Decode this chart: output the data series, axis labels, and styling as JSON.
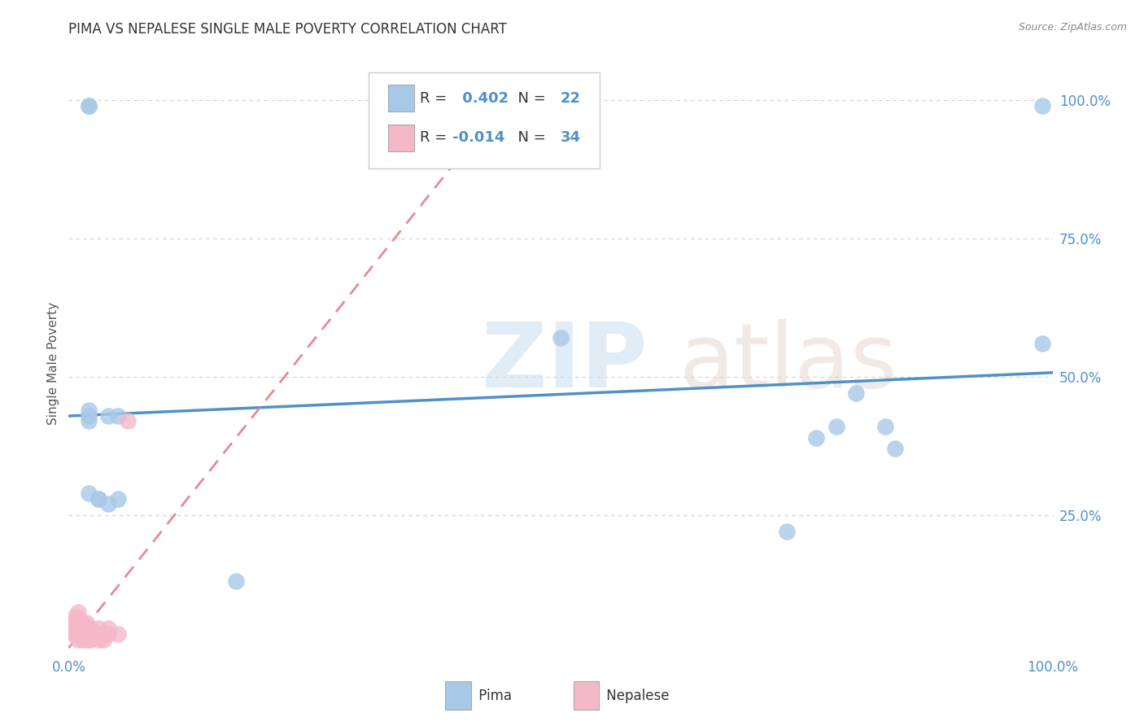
{
  "title": "PIMA VS NEPALESE SINGLE MALE POVERTY CORRELATION CHART",
  "source": "Source: ZipAtlas.com",
  "ylabel_label": "Single Male Poverty",
  "pima_R": 0.402,
  "pima_N": 22,
  "nepalese_R": -0.014,
  "nepalese_N": 34,
  "pima_color": "#a8c8e8",
  "nepalese_color": "#f4b8c8",
  "pima_line_color": "#5090c8",
  "nepalese_line_color": "#e88898",
  "pima_scatter_x": [
    0.02,
    0.02,
    0.02,
    0.02,
    0.03,
    0.03,
    0.04,
    0.04,
    0.05,
    0.05,
    0.5,
    0.73,
    0.76,
    0.78,
    0.8,
    0.83,
    0.84,
    0.99,
    0.02,
    0.02,
    0.17,
    0.99
  ],
  "pima_scatter_y": [
    0.44,
    0.43,
    0.42,
    0.29,
    0.28,
    0.28,
    0.43,
    0.27,
    0.43,
    0.28,
    0.57,
    0.22,
    0.39,
    0.41,
    0.47,
    0.41,
    0.37,
    0.56,
    0.99,
    0.99,
    0.13,
    0.99
  ],
  "nepalese_scatter_x": [
    0.005,
    0.005,
    0.005,
    0.005,
    0.007,
    0.007,
    0.008,
    0.01,
    0.01,
    0.01,
    0.01,
    0.01,
    0.01,
    0.012,
    0.013,
    0.015,
    0.015,
    0.018,
    0.018,
    0.018,
    0.02,
    0.02,
    0.02,
    0.022,
    0.022,
    0.025,
    0.03,
    0.03,
    0.03,
    0.035,
    0.04,
    0.04,
    0.05,
    0.06
  ],
  "nepalese_scatter_y": [
    0.035,
    0.045,
    0.055,
    0.065,
    0.035,
    0.055,
    0.055,
    0.025,
    0.035,
    0.045,
    0.055,
    0.065,
    0.075,
    0.045,
    0.055,
    0.025,
    0.035,
    0.025,
    0.035,
    0.055,
    0.025,
    0.035,
    0.045,
    0.025,
    0.045,
    0.035,
    0.025,
    0.035,
    0.045,
    0.025,
    0.035,
    0.045,
    0.035,
    0.42
  ],
  "background_color": "#ffffff",
  "grid_color": "#d0d0d0",
  "xlim": [
    0.0,
    1.0
  ],
  "ylim": [
    0.0,
    1.05
  ],
  "yticks": [
    0.25,
    0.5,
    0.75,
    1.0
  ],
  "ytick_labels": [
    "25.0%",
    "50.0%",
    "75.0%",
    "100.0%"
  ],
  "xticks": [
    0.0,
    1.0
  ],
  "xtick_labels": [
    "0.0%",
    "100.0%"
  ]
}
